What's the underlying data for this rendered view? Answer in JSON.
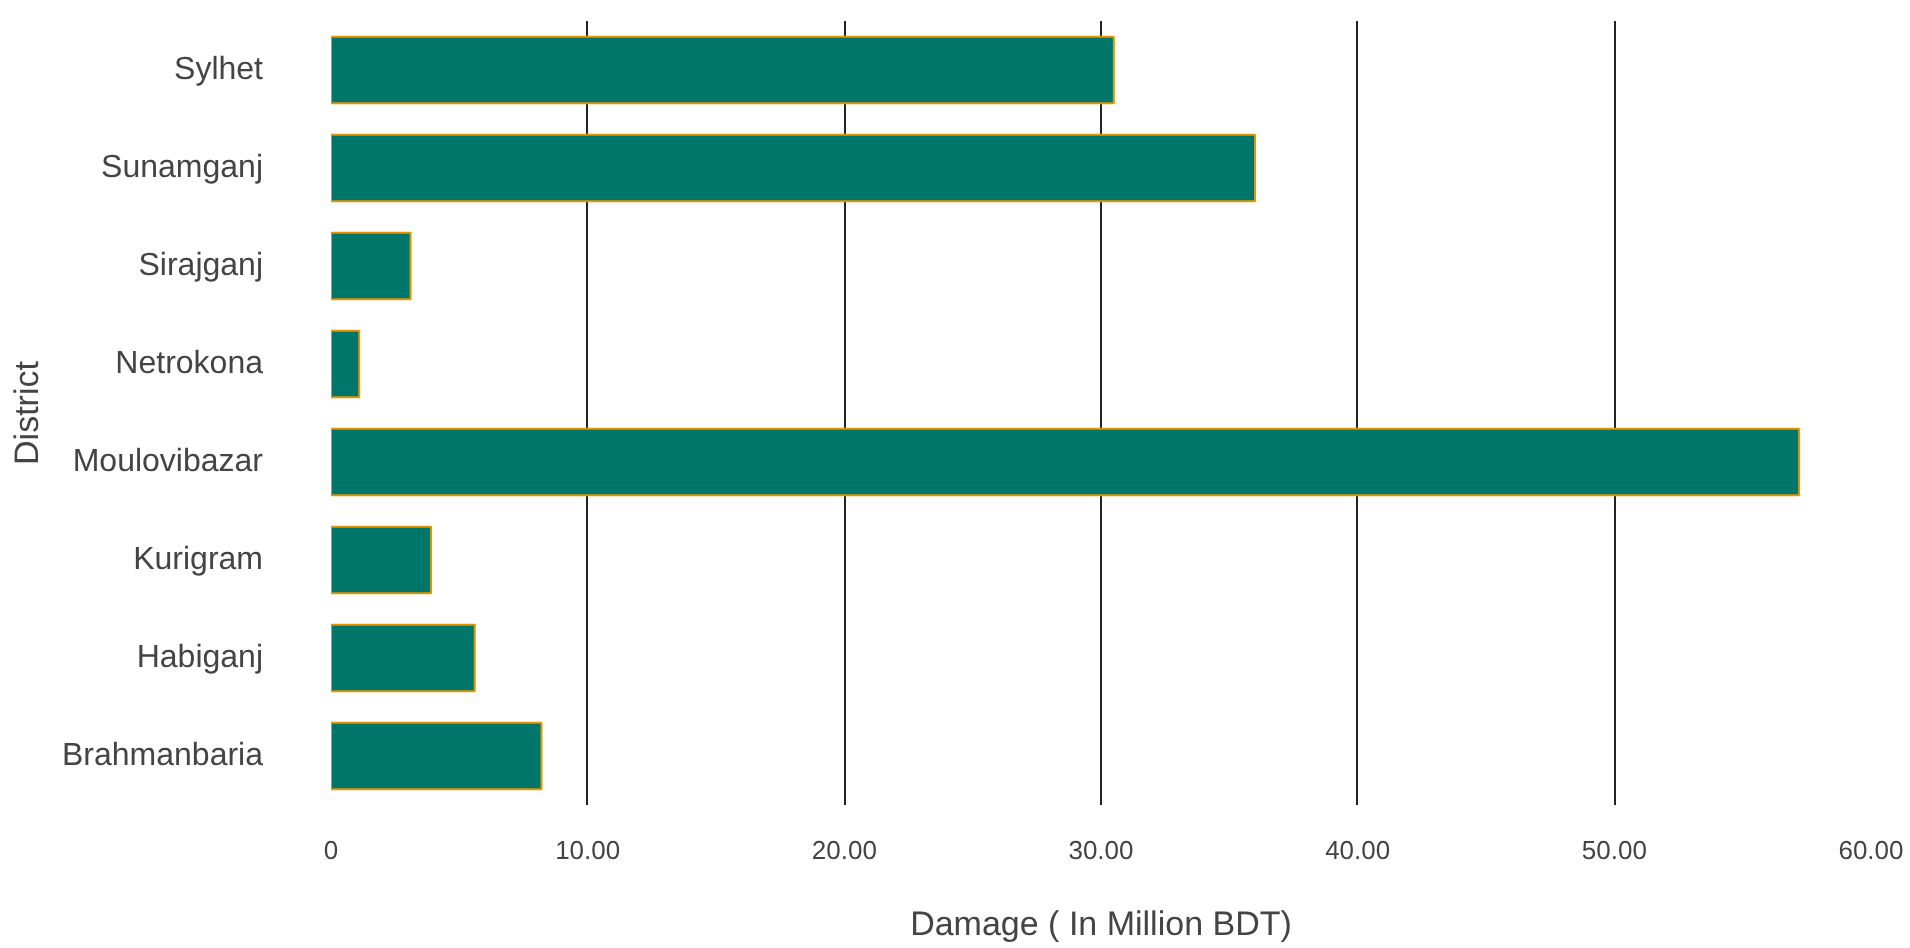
{
  "chart_data": {
    "type": "bar",
    "orientation": "horizontal",
    "xlabel": "Damage ( In Million BDT)",
    "ylabel": "District",
    "categories": [
      "Sylhet",
      "Sunamganj",
      "Sirajganj",
      "Netrokona",
      "Moulovibazar",
      "Kurigram",
      "Habiganj",
      "Brahmanbaria"
    ],
    "values": [
      30.5,
      36.0,
      3.1,
      1.1,
      57.2,
      3.9,
      5.6,
      8.2
    ],
    "color": "#00766b",
    "xlim": [
      0,
      60
    ],
    "xticks": [
      {
        "value": 0,
        "label": "0"
      },
      {
        "value": 10,
        "label": "10.00"
      },
      {
        "value": 20,
        "label": "20.00"
      },
      {
        "value": 30,
        "label": "30.00"
      },
      {
        "value": 40,
        "label": "40.00"
      },
      {
        "value": 50,
        "label": "50.00"
      },
      {
        "value": 60,
        "label": "60.00"
      }
    ],
    "grid": "x"
  }
}
